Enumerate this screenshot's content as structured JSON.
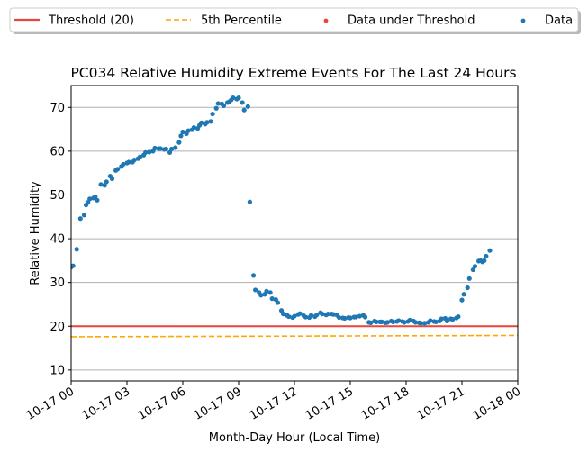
{
  "chart_data": {
    "type": "scatter",
    "title": "PC034 Relative Humidity Extreme Events For The Last 24 Hours",
    "xlabel": "Month-Day Hour (Local Time)",
    "ylabel": "Relative Humidity",
    "xlim": [
      0,
      24
    ],
    "ylim": [
      7.5,
      75
    ],
    "x_tick_values": [
      0,
      3,
      6,
      9,
      12,
      15,
      18,
      21,
      24
    ],
    "x_tick_labels": [
      "10-17 00",
      "10-17 03",
      "10-17 06",
      "10-17 09",
      "10-17 12",
      "10-17 15",
      "10-17 18",
      "10-17 21",
      "10-18 00"
    ],
    "y_ticks": [
      10,
      20,
      30,
      40,
      50,
      60,
      70
    ],
    "grid": "horizontal",
    "legend_position": "top, outside plot, one row",
    "legend": [
      {
        "label": "Threshold (20)",
        "kind": "line",
        "color": "#e8453c"
      },
      {
        "label": "5th Percentile",
        "kind": "dashed-line",
        "color": "#ffa600"
      },
      {
        "label": "Data under Threshold",
        "kind": "marker",
        "color": "#e8453c"
      },
      {
        "label": "Data",
        "kind": "marker",
        "color": "#1f77b4"
      }
    ],
    "threshold": {
      "name": "Threshold (20)",
      "value": 20,
      "color": "#e8453c"
    },
    "percentile_5th": {
      "name": "5th Percentile",
      "start": 17.6,
      "end": 17.9,
      "color": "#ffa600"
    },
    "series": [
      {
        "name": "Data",
        "color": "#1f77b4",
        "points": [
          [
            0.0,
            33.5
          ],
          [
            0.1,
            33.8
          ],
          [
            0.3,
            37.6
          ],
          [
            0.5,
            44.6
          ],
          [
            0.7,
            45.4
          ],
          [
            0.8,
            47.7
          ],
          [
            0.9,
            48.3
          ],
          [
            1.0,
            49.1
          ],
          [
            1.2,
            49.3
          ],
          [
            1.3,
            49.6
          ],
          [
            1.4,
            48.8
          ],
          [
            1.6,
            52.4
          ],
          [
            1.8,
            52.2
          ],
          [
            1.9,
            53.0
          ],
          [
            2.1,
            54.3
          ],
          [
            2.2,
            53.7
          ],
          [
            2.4,
            55.6
          ],
          [
            2.5,
            55.9
          ],
          [
            2.7,
            56.5
          ],
          [
            2.8,
            57.0
          ],
          [
            3.0,
            57.3
          ],
          [
            3.1,
            57.5
          ],
          [
            3.3,
            57.5
          ],
          [
            3.4,
            58.0
          ],
          [
            3.6,
            58.3
          ],
          [
            3.7,
            58.7
          ],
          [
            3.9,
            59.1
          ],
          [
            4.0,
            59.7
          ],
          [
            4.2,
            59.8
          ],
          [
            4.4,
            60.0
          ],
          [
            4.5,
            60.7
          ],
          [
            4.7,
            60.6
          ],
          [
            4.8,
            60.6
          ],
          [
            5.0,
            60.4
          ],
          [
            5.1,
            60.5
          ],
          [
            5.3,
            59.7
          ],
          [
            5.4,
            60.5
          ],
          [
            5.6,
            60.8
          ],
          [
            5.8,
            62.0
          ],
          [
            5.9,
            63.5
          ],
          [
            6.0,
            64.4
          ],
          [
            6.2,
            64.0
          ],
          [
            6.3,
            64.7
          ],
          [
            6.5,
            64.9
          ],
          [
            6.6,
            65.4
          ],
          [
            6.8,
            65.2
          ],
          [
            6.9,
            65.9
          ],
          [
            7.0,
            66.5
          ],
          [
            7.2,
            66.2
          ],
          [
            7.3,
            66.6
          ],
          [
            7.5,
            66.8
          ],
          [
            7.6,
            68.5
          ],
          [
            7.8,
            69.8
          ],
          [
            7.9,
            70.9
          ],
          [
            8.1,
            70.8
          ],
          [
            8.2,
            70.4
          ],
          [
            8.4,
            71.1
          ],
          [
            8.5,
            71.3
          ],
          [
            8.6,
            71.7
          ],
          [
            8.7,
            72.2
          ],
          [
            8.9,
            71.9
          ],
          [
            9.0,
            72.2
          ],
          [
            9.2,
            71.1
          ],
          [
            9.3,
            69.4
          ],
          [
            9.5,
            70.2
          ],
          [
            9.6,
            48.4
          ],
          [
            9.8,
            31.6
          ],
          [
            9.9,
            28.3
          ],
          [
            10.1,
            27.7
          ],
          [
            10.2,
            27.1
          ],
          [
            10.4,
            27.3
          ],
          [
            10.5,
            28.0
          ],
          [
            10.7,
            27.7
          ],
          [
            10.8,
            26.3
          ],
          [
            11.0,
            26.1
          ],
          [
            11.1,
            25.4
          ],
          [
            11.3,
            23.6
          ],
          [
            11.4,
            22.8
          ],
          [
            11.6,
            22.5
          ],
          [
            11.7,
            22.2
          ],
          [
            11.9,
            22.0
          ],
          [
            12.0,
            22.3
          ],
          [
            12.2,
            22.7
          ],
          [
            12.3,
            22.9
          ],
          [
            12.5,
            22.4
          ],
          [
            12.6,
            22.1
          ],
          [
            12.8,
            22.0
          ],
          [
            12.9,
            22.5
          ],
          [
            13.1,
            22.2
          ],
          [
            13.2,
            22.6
          ],
          [
            13.4,
            23.1
          ],
          [
            13.5,
            22.8
          ],
          [
            13.7,
            22.6
          ],
          [
            13.8,
            22.8
          ],
          [
            14.0,
            22.8
          ],
          [
            14.1,
            22.7
          ],
          [
            14.3,
            22.5
          ],
          [
            14.4,
            22.0
          ],
          [
            14.6,
            21.9
          ],
          [
            14.7,
            21.8
          ],
          [
            14.9,
            22.0
          ],
          [
            15.0,
            21.9
          ],
          [
            15.2,
            22.1
          ],
          [
            15.3,
            22.1
          ],
          [
            15.5,
            22.3
          ],
          [
            15.7,
            22.5
          ],
          [
            15.8,
            22.1
          ],
          [
            16.0,
            20.9
          ],
          [
            16.1,
            20.8
          ],
          [
            16.3,
            21.2
          ],
          [
            16.4,
            21.0
          ],
          [
            16.6,
            21.0
          ],
          [
            16.7,
            21.0
          ],
          [
            16.9,
            20.8
          ],
          [
            17.0,
            20.9
          ],
          [
            17.2,
            21.2
          ],
          [
            17.3,
            21.0
          ],
          [
            17.5,
            21.1
          ],
          [
            17.6,
            21.3
          ],
          [
            17.8,
            21.1
          ],
          [
            17.9,
            20.9
          ],
          [
            18.1,
            21.1
          ],
          [
            18.2,
            21.4
          ],
          [
            18.4,
            21.2
          ],
          [
            18.5,
            20.9
          ],
          [
            18.7,
            20.8
          ],
          [
            18.8,
            20.7
          ],
          [
            19.0,
            20.7
          ],
          [
            19.2,
            20.9
          ],
          [
            19.3,
            21.3
          ],
          [
            19.5,
            21.1
          ],
          [
            19.6,
            21.0
          ],
          [
            19.8,
            21.2
          ],
          [
            19.9,
            21.7
          ],
          [
            20.1,
            21.8
          ],
          [
            20.2,
            21.2
          ],
          [
            20.4,
            21.7
          ],
          [
            20.5,
            21.6
          ],
          [
            20.7,
            21.9
          ],
          [
            20.8,
            22.2
          ],
          [
            21.0,
            26.0
          ],
          [
            21.1,
            27.3
          ],
          [
            21.3,
            28.8
          ],
          [
            21.4,
            30.9
          ],
          [
            21.6,
            32.9
          ],
          [
            21.7,
            33.7
          ],
          [
            21.9,
            34.9
          ],
          [
            22.0,
            35.0
          ],
          [
            22.1,
            34.7
          ],
          [
            22.2,
            35.0
          ],
          [
            22.3,
            36.0
          ],
          [
            22.5,
            37.3
          ]
        ]
      }
    ]
  }
}
